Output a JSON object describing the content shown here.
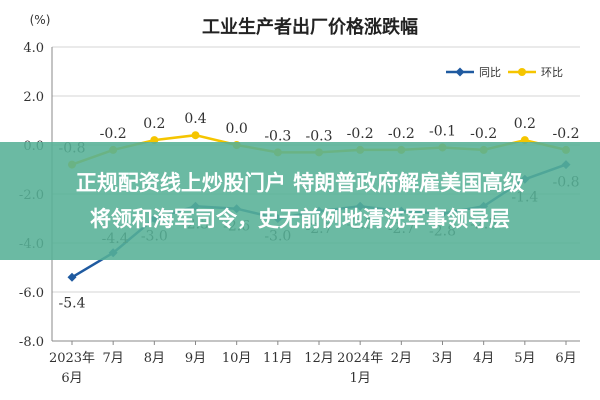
{
  "chart_data": {
    "type": "line",
    "title": "工业生产者出厂价格涨跌幅",
    "unit_label": "(%)",
    "categories": [
      "2023年6月",
      "7月",
      "8月",
      "9月",
      "10月",
      "11月",
      "12月",
      "2024年1月",
      "2月",
      "3月",
      "4月",
      "5月",
      "6月"
    ],
    "category_labels": [
      [
        "2023年",
        "6月"
      ],
      [
        "7月",
        ""
      ],
      [
        "8月",
        ""
      ],
      [
        "9月",
        ""
      ],
      [
        "10月",
        ""
      ],
      [
        "11月",
        ""
      ],
      [
        "12月",
        ""
      ],
      [
        "2024年",
        "1月"
      ],
      [
        "2月",
        ""
      ],
      [
        "3月",
        ""
      ],
      [
        "4月",
        ""
      ],
      [
        "5月",
        ""
      ],
      [
        "6月",
        ""
      ]
    ],
    "series": [
      {
        "name": "同比",
        "color": "#1f5aa0",
        "values": [
          -5.4,
          -4.4,
          -3.0,
          -2.5,
          -2.6,
          -3.0,
          -2.7,
          -2.5,
          -2.7,
          -2.8,
          -2.5,
          -1.4,
          -0.8
        ],
        "value_labels": [
          "-5.4",
          "-4.4",
          "-3.0",
          "-2.5",
          "-2.6",
          "-3.0",
          "-2.7",
          "-2.5",
          "-2.7",
          "-2.8",
          "-2.5",
          "-1.4",
          "-0.8"
        ]
      },
      {
        "name": "环比",
        "color": "#f5c500",
        "values": [
          -0.8,
          -0.2,
          0.2,
          0.4,
          0.0,
          -0.3,
          -0.3,
          -0.2,
          -0.2,
          -0.1,
          -0.2,
          0.2,
          -0.2
        ],
        "value_labels": [
          "-0.8",
          "-0.2",
          "0.2",
          "0.4",
          "0.0",
          "-0.3",
          "-0.3",
          "-0.2",
          "-0.2",
          "-0.1",
          "-0.2",
          "0.2",
          "-0.2"
        ]
      }
    ],
    "y_ticks": [
      "4.0",
      "2.0",
      "0.0",
      "-2.0",
      "-4.0",
      "-6.0",
      "-8.0"
    ],
    "ylim": [
      -8,
      4
    ],
    "grid": true,
    "legend_position": "top-right"
  },
  "overlay": {
    "headline_line1": "正规配资线上炒股门户 特朗普政府解雇美国高级",
    "headline_line2": "将领和海军司令，史无前例地清洗军事领导层"
  }
}
